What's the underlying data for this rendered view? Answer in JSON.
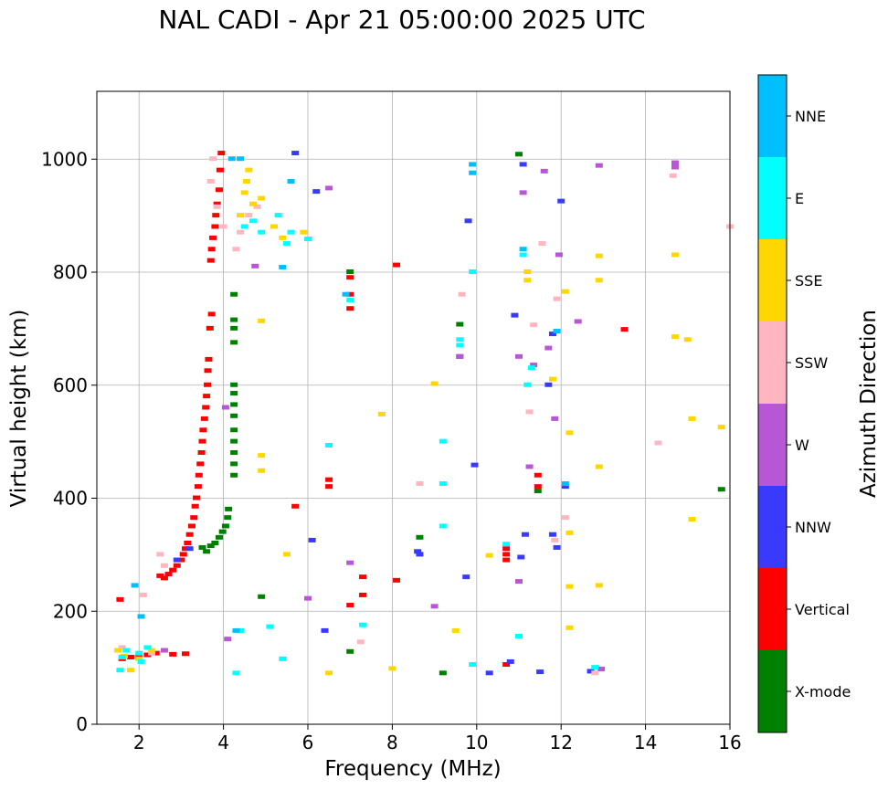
{
  "chart_data": {
    "type": "scatter",
    "title": "NAL CADI - Apr 21 05:00:00 2025 UTC",
    "xlabel": "Frequency (MHz)",
    "ylabel": "Virtual height (km)",
    "xlim": [
      1.0,
      16.0
    ],
    "ylim": [
      0,
      1120
    ],
    "xticks": [
      2,
      4,
      6,
      8,
      10,
      12,
      14,
      16
    ],
    "xtick_labels": [
      "2",
      "4",
      "6",
      "8",
      "10",
      "12",
      "14",
      "16"
    ],
    "yticks": [
      0,
      200,
      400,
      600,
      800,
      1000
    ],
    "ytick_labels": [
      "0",
      "200",
      "400",
      "600",
      "800",
      "1000"
    ],
    "grid": true,
    "colorbar": {
      "title": "Azimuth Direction",
      "categories": [
        "X-mode",
        "Vertical",
        "NNW",
        "W",
        "SSW",
        "SSE",
        "E",
        "NNE"
      ],
      "colors": [
        "#008000",
        "#ff0000",
        "#3a3aff",
        "#b857d6",
        "#ffb6c1",
        "#ffd700",
        "#00ffff",
        "#00bfff"
      ]
    },
    "series": [
      {
        "name": "Vertical",
        "color": "#ff0000",
        "points": [
          [
            1.55,
            220
          ],
          [
            1.6,
            115
          ],
          [
            1.8,
            118
          ],
          [
            2.0,
            120
          ],
          [
            2.2,
            122
          ],
          [
            2.4,
            125
          ],
          [
            2.8,
            123
          ],
          [
            3.1,
            124
          ],
          [
            2.5,
            262
          ],
          [
            2.6,
            258
          ],
          [
            2.7,
            265
          ],
          [
            2.8,
            272
          ],
          [
            2.9,
            280
          ],
          [
            3.0,
            290
          ],
          [
            3.05,
            300
          ],
          [
            3.1,
            310
          ],
          [
            3.15,
            320
          ],
          [
            3.2,
            335
          ],
          [
            3.25,
            350
          ],
          [
            3.3,
            365
          ],
          [
            3.33,
            385
          ],
          [
            3.36,
            400
          ],
          [
            3.4,
            420
          ],
          [
            3.42,
            440
          ],
          [
            3.45,
            460
          ],
          [
            3.48,
            480
          ],
          [
            3.5,
            500
          ],
          [
            3.52,
            520
          ],
          [
            3.55,
            540
          ],
          [
            3.58,
            560
          ],
          [
            3.6,
            580
          ],
          [
            3.62,
            600
          ],
          [
            3.63,
            625
          ],
          [
            3.65,
            645
          ],
          [
            3.68,
            700
          ],
          [
            3.72,
            725
          ],
          [
            3.7,
            820
          ],
          [
            3.72,
            840
          ],
          [
            3.75,
            860
          ],
          [
            3.8,
            880
          ],
          [
            3.82,
            900
          ],
          [
            3.85,
            920
          ],
          [
            3.9,
            945
          ],
          [
            3.92,
            980
          ],
          [
            3.95,
            1010
          ],
          [
            5.7,
            385
          ],
          [
            6.5,
            420
          ],
          [
            6.5,
            432
          ],
          [
            7.0,
            210
          ],
          [
            7.0,
            735
          ],
          [
            7.0,
            760
          ],
          [
            7.0,
            790
          ],
          [
            7.3,
            228
          ],
          [
            7.3,
            260
          ],
          [
            8.1,
            254
          ],
          [
            8.1,
            812
          ],
          [
            10.7,
            290
          ],
          [
            10.7,
            300
          ],
          [
            10.7,
            310
          ],
          [
            10.7,
            105
          ],
          [
            11.45,
            440
          ],
          [
            11.45,
            420
          ],
          [
            13.5,
            698
          ]
        ]
      },
      {
        "name": "X-mode",
        "color": "#008000",
        "points": [
          [
            3.5,
            312
          ],
          [
            3.6,
            305
          ],
          [
            3.7,
            315
          ],
          [
            3.8,
            320
          ],
          [
            3.9,
            330
          ],
          [
            3.98,
            340
          ],
          [
            4.05,
            350
          ],
          [
            4.1,
            365
          ],
          [
            4.12,
            380
          ],
          [
            4.25,
            440
          ],
          [
            4.25,
            460
          ],
          [
            4.25,
            480
          ],
          [
            4.25,
            500
          ],
          [
            4.25,
            520
          ],
          [
            4.25,
            545
          ],
          [
            4.25,
            565
          ],
          [
            4.25,
            585
          ],
          [
            4.25,
            600
          ],
          [
            4.25,
            675
          ],
          [
            4.25,
            700
          ],
          [
            4.25,
            715
          ],
          [
            4.25,
            760
          ],
          [
            4.9,
            225
          ],
          [
            7.0,
            128
          ],
          [
            7.0,
            800
          ],
          [
            8.65,
            330
          ],
          [
            9.2,
            90
          ],
          [
            9.6,
            650
          ],
          [
            9.6,
            707
          ],
          [
            11.0,
            1008
          ],
          [
            11.45,
            412
          ],
          [
            15.8,
            415
          ]
        ]
      },
      {
        "name": "NNW",
        "color": "#3a3aff",
        "points": [
          [
            2.9,
            290
          ],
          [
            3.2,
            310
          ],
          [
            5.7,
            1010
          ],
          [
            6.1,
            325
          ],
          [
            6.2,
            942
          ],
          [
            6.4,
            165
          ],
          [
            8.65,
            300
          ],
          [
            9.75,
            260
          ],
          [
            9.8,
            890
          ],
          [
            9.95,
            458
          ],
          [
            10.3,
            90
          ],
          [
            10.8,
            110
          ],
          [
            11.05,
            295
          ],
          [
            11.1,
            990
          ],
          [
            11.15,
            335
          ],
          [
            11.5,
            92
          ],
          [
            11.7,
            600
          ],
          [
            11.8,
            335
          ],
          [
            11.8,
            690
          ],
          [
            11.9,
            312
          ],
          [
            12.0,
            925
          ],
          [
            12.1,
            420
          ],
          [
            12.7,
            93
          ],
          [
            10.9,
            723
          ],
          [
            8.6,
            305
          ]
        ]
      },
      {
        "name": "W",
        "color": "#b857d6",
        "points": [
          [
            2.6,
            130
          ],
          [
            4.05,
            560
          ],
          [
            4.1,
            150
          ],
          [
            4.75,
            810
          ],
          [
            6.0,
            222
          ],
          [
            6.5,
            948
          ],
          [
            7.0,
            285
          ],
          [
            9.0,
            208
          ],
          [
            9.6,
            650
          ],
          [
            11.0,
            252
          ],
          [
            11.0,
            650
          ],
          [
            11.1,
            940
          ],
          [
            11.25,
            455
          ],
          [
            11.35,
            635
          ],
          [
            11.6,
            978
          ],
          [
            11.7,
            665
          ],
          [
            11.85,
            540
          ],
          [
            11.95,
            830
          ],
          [
            12.4,
            712
          ],
          [
            12.9,
            988
          ],
          [
            14.7,
            985
          ],
          [
            14.7,
            993
          ],
          [
            12.95,
            97
          ]
        ]
      },
      {
        "name": "SSW",
        "color": "#ffb6c1",
        "points": [
          [
            1.6,
            135
          ],
          [
            2.1,
            228
          ],
          [
            2.3,
            125
          ],
          [
            2.5,
            300
          ],
          [
            2.6,
            280
          ],
          [
            3.7,
            960
          ],
          [
            3.75,
            1000
          ],
          [
            3.85,
            915
          ],
          [
            4.0,
            880
          ],
          [
            4.3,
            840
          ],
          [
            4.4,
            870
          ],
          [
            4.6,
            900
          ],
          [
            4.8,
            915
          ],
          [
            7.25,
            145
          ],
          [
            8.65,
            425
          ],
          [
            9.65,
            760
          ],
          [
            11.25,
            552
          ],
          [
            11.35,
            706
          ],
          [
            11.55,
            850
          ],
          [
            11.85,
            325
          ],
          [
            11.9,
            752
          ],
          [
            12.1,
            365
          ],
          [
            12.8,
            90
          ],
          [
            14.65,
            970
          ],
          [
            14.3,
            497
          ],
          [
            16.0,
            880
          ]
        ]
      },
      {
        "name": "SSE",
        "color": "#ffd700",
        "points": [
          [
            1.5,
            130
          ],
          [
            1.65,
            120
          ],
          [
            1.8,
            95
          ],
          [
            2.0,
            115
          ],
          [
            2.3,
            130
          ],
          [
            4.4,
            900
          ],
          [
            4.5,
            940
          ],
          [
            4.55,
            960
          ],
          [
            4.6,
            980
          ],
          [
            4.7,
            920
          ],
          [
            4.9,
            930
          ],
          [
            5.2,
            880
          ],
          [
            5.4,
            860
          ],
          [
            5.5,
            300
          ],
          [
            5.9,
            870
          ],
          [
            4.9,
            475
          ],
          [
            4.9,
            448
          ],
          [
            6.5,
            90
          ],
          [
            7.75,
            548
          ],
          [
            8.0,
            98
          ],
          [
            9.0,
            602
          ],
          [
            9.5,
            165
          ],
          [
            10.3,
            298
          ],
          [
            11.2,
            785
          ],
          [
            11.2,
            800
          ],
          [
            11.8,
            610
          ],
          [
            12.1,
            765
          ],
          [
            12.2,
            170
          ],
          [
            12.2,
            243
          ],
          [
            12.2,
            338
          ],
          [
            12.2,
            515
          ],
          [
            12.9,
            455
          ],
          [
            12.9,
            245
          ],
          [
            12.9,
            785
          ],
          [
            12.9,
            828
          ],
          [
            14.7,
            685
          ],
          [
            14.7,
            830
          ],
          [
            15.0,
            680
          ],
          [
            15.1,
            540
          ],
          [
            15.1,
            362
          ],
          [
            15.8,
            525
          ],
          [
            4.9,
            713
          ],
          [
            9.9,
            990
          ]
        ]
      },
      {
        "name": "E",
        "color": "#00ffff",
        "points": [
          [
            1.55,
            95
          ],
          [
            1.6,
            118
          ],
          [
            1.7,
            130
          ],
          [
            2.0,
            125
          ],
          [
            2.05,
            110
          ],
          [
            2.2,
            135
          ],
          [
            4.3,
            90
          ],
          [
            4.4,
            165
          ],
          [
            4.5,
            880
          ],
          [
            4.7,
            890
          ],
          [
            4.9,
            870
          ],
          [
            5.1,
            172
          ],
          [
            5.3,
            900
          ],
          [
            5.4,
            115
          ],
          [
            5.5,
            850
          ],
          [
            5.6,
            870
          ],
          [
            6.0,
            858
          ],
          [
            6.5,
            493
          ],
          [
            7.0,
            750
          ],
          [
            7.3,
            175
          ],
          [
            9.2,
            425
          ],
          [
            9.2,
            500
          ],
          [
            9.2,
            350
          ],
          [
            9.6,
            670
          ],
          [
            9.6,
            680
          ],
          [
            9.9,
            105
          ],
          [
            9.9,
            800
          ],
          [
            10.7,
            318
          ],
          [
            11.0,
            155
          ],
          [
            11.1,
            830
          ],
          [
            11.2,
            600
          ],
          [
            11.3,
            630
          ],
          [
            12.8,
            100
          ]
        ]
      },
      {
        "name": "NNE",
        "color": "#00bfff",
        "points": [
          [
            1.9,
            245
          ],
          [
            2.05,
            190
          ],
          [
            4.2,
            1000
          ],
          [
            4.3,
            165
          ],
          [
            4.4,
            1000
          ],
          [
            5.4,
            808
          ],
          [
            5.6,
            960
          ],
          [
            6.9,
            760
          ],
          [
            9.9,
            990
          ],
          [
            9.9,
            975
          ],
          [
            11.1,
            840
          ],
          [
            11.9,
            695
          ],
          [
            12.1,
            425
          ]
        ]
      }
    ]
  }
}
